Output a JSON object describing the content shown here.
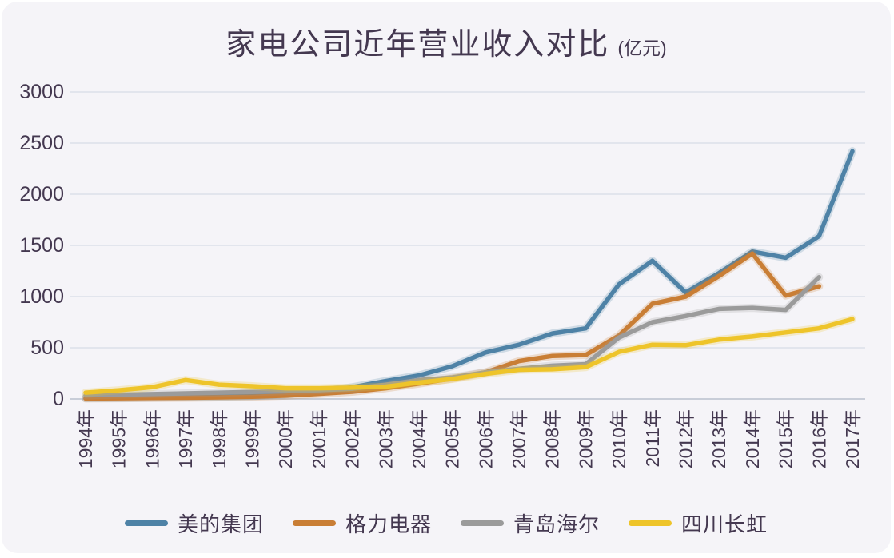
{
  "chart_data": {
    "type": "line",
    "title": "家电公司近年营业收入对比",
    "unit_label": "(亿元)",
    "categories": [
      "1994年",
      "1995年",
      "1996年",
      "1997年",
      "1998年",
      "1999年",
      "2000年",
      "2001年",
      "2002年",
      "2003年",
      "2004年",
      "2005年",
      "2006年",
      "2007年",
      "2008年",
      "2009年",
      "2010年",
      "2011年",
      "2012年",
      "2013年",
      "2014年",
      "2015年",
      "2016年",
      "2017年"
    ],
    "series": [
      {
        "id": "midea",
        "name": "美的集团",
        "color": "#4e82a6",
        "values": [
          8,
          10,
          13,
          18,
          22,
          28,
          45,
          70,
          115,
          175,
          230,
          320,
          455,
          530,
          640,
          690,
          1120,
          1350,
          1040,
          1230,
          1440,
          1380,
          1590,
          2420
        ]
      },
      {
        "id": "gree",
        "name": "格力电器",
        "color": "#c97e35",
        "values": [
          5,
          7,
          9,
          12,
          16,
          22,
          32,
          50,
          70,
          105,
          150,
          200,
          260,
          370,
          420,
          430,
          620,
          930,
          1000,
          1200,
          1420,
          1010,
          1100,
          null
        ]
      },
      {
        "id": "haier",
        "name": "青岛海尔",
        "color": "#9b9b9b",
        "values": [
          35,
          42,
          48,
          55,
          62,
          68,
          75,
          85,
          100,
          140,
          185,
          210,
          260,
          295,
          325,
          340,
          600,
          750,
          810,
          880,
          890,
          870,
          1190,
          null
        ]
      },
      {
        "id": "changhong",
        "name": "四川长虹",
        "color": "#eec42a",
        "values": [
          62,
          85,
          115,
          185,
          140,
          125,
          105,
          105,
          110,
          120,
          160,
          195,
          245,
          285,
          290,
          310,
          460,
          530,
          525,
          580,
          610,
          650,
          690,
          780
        ]
      }
    ],
    "ylim": [
      0,
      3000
    ],
    "ytick_step": 500,
    "yticks": [
      "0",
      "500",
      "1000",
      "1500",
      "2000",
      "2500",
      "3000"
    ],
    "grid": true,
    "legend_position": "bottom"
  },
  "colors": {
    "background": "#f5f4f8",
    "outside": "#ffffff",
    "text": "#443850",
    "gridline": "#d7dce6",
    "axis_line": "#b9c0cd"
  }
}
